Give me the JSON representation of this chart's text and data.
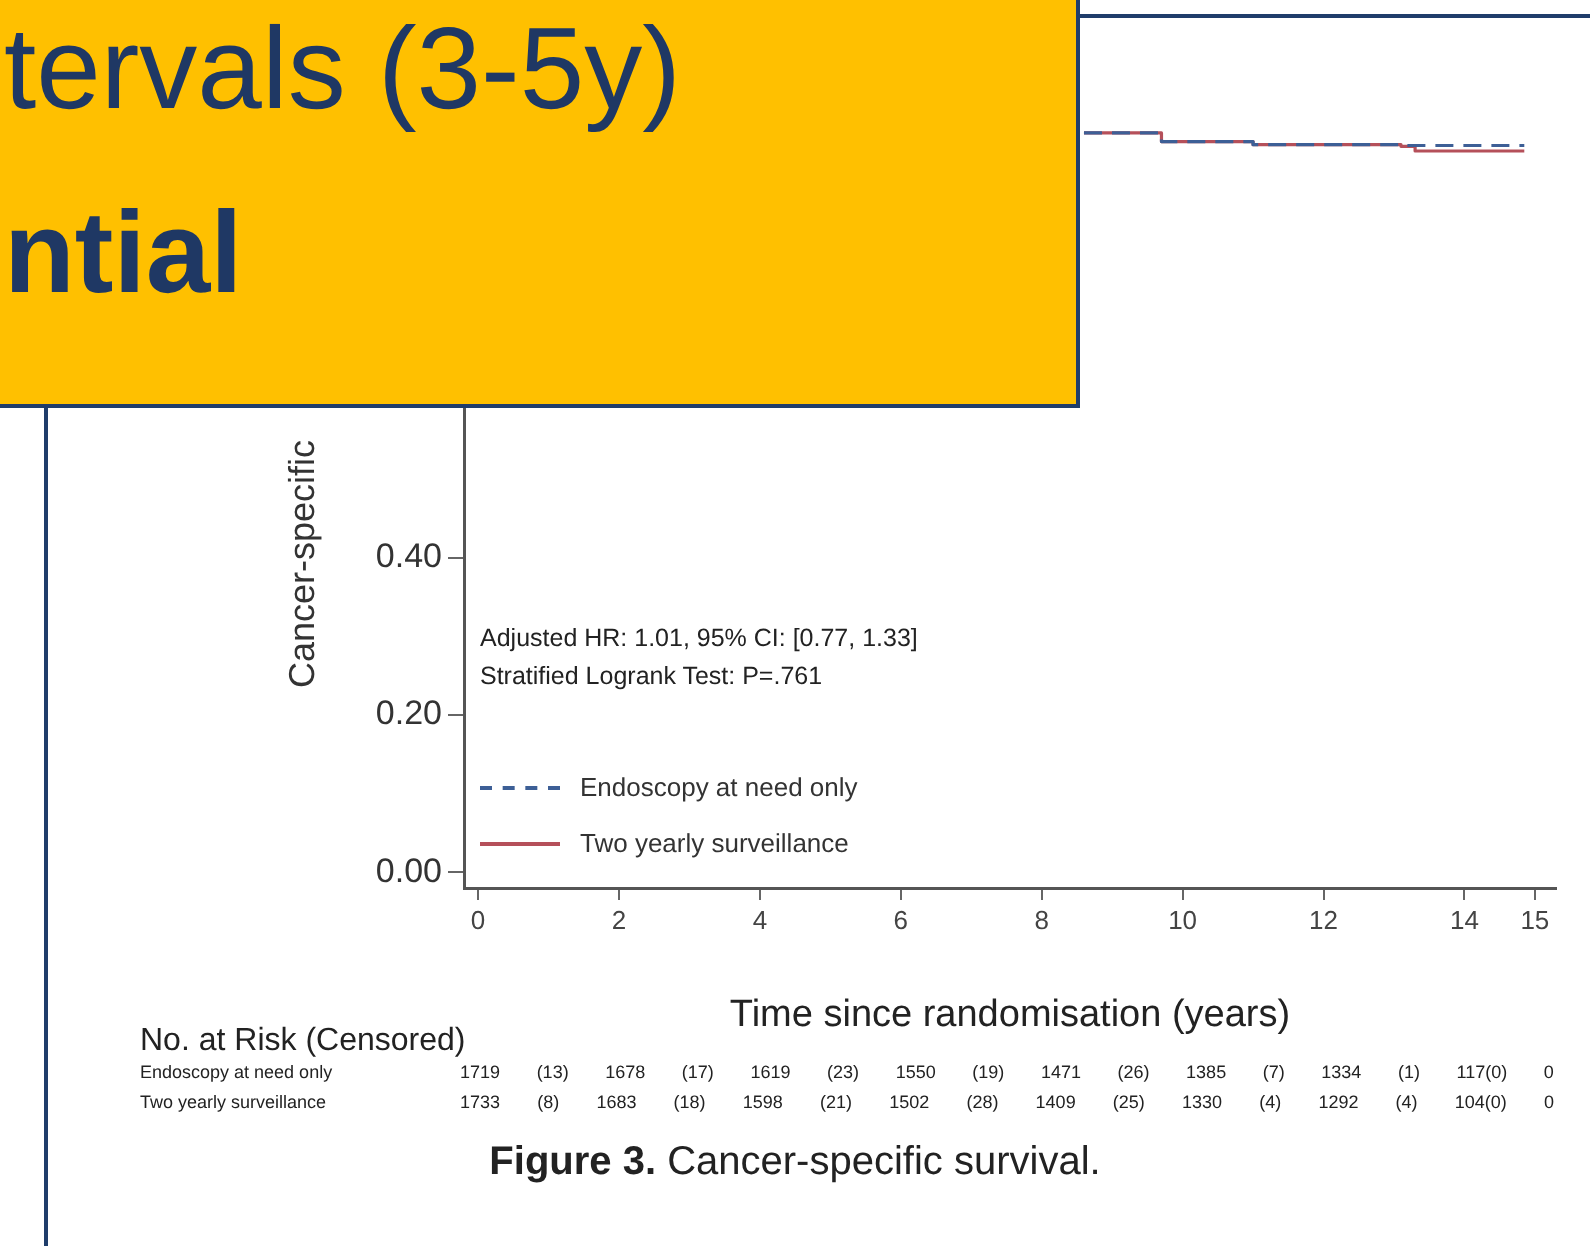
{
  "chart_data": {
    "type": "step",
    "ylabel": "Cancer-specific",
    "xlabel": "Time since randomisation (years)",
    "xlim": [
      -0.2,
      15.3
    ],
    "xticks": [
      0,
      2,
      4,
      6,
      8,
      10,
      12,
      14,
      15
    ],
    "ylim": [
      -0.02,
      1.02
    ],
    "yticks": [
      {
        "value": 0,
        "label": "0.00"
      },
      {
        "value": 0.2,
        "label": "0.20"
      },
      {
        "value": 0.4,
        "label": "0.40"
      }
    ],
    "series": [
      {
        "name": "Endoscopy at need only",
        "color": "#3d5f96",
        "line_style": "dashed",
        "x": [
          8.6,
          9.7,
          11,
          13.1,
          14.85
        ],
        "values": [
          0.94,
          0.929,
          0.925,
          0.924,
          0.924
        ]
      },
      {
        "name": "Two yearly surveillance",
        "color": "#b5505a",
        "line_style": "solid",
        "x": [
          8.6,
          9.7,
          11,
          13.1,
          13.3,
          14.85
        ],
        "values": [
          0.94,
          0.929,
          0.925,
          0.923,
          0.917,
          0.917
        ]
      }
    ],
    "legend": "bottom left",
    "grid": false,
    "annotations": [
      "tervals (3-5y)",
      "ntial",
      "Adjusted HR: 1.01, 95% CI: [0.77, 1.33]",
      "Stratified Logrank Test: P=.761",
      "No. at Risk (Censored)",
      "Endoscopy at need only",
      "1719 (13) 1678 (17) 1619 (23) 1550 (19) 1471 (26) 1385 (7) 1334 (1) 117(0) 0",
      "Two yearly surveillance",
      "1733 (8) 1683 (18) 1598 (21) 1502 (28) 1409 (25) 1330 (4) 1292 (4) 104(0) 0",
      "Figure 3. Cancer-specific survival."
    ]
  }
}
